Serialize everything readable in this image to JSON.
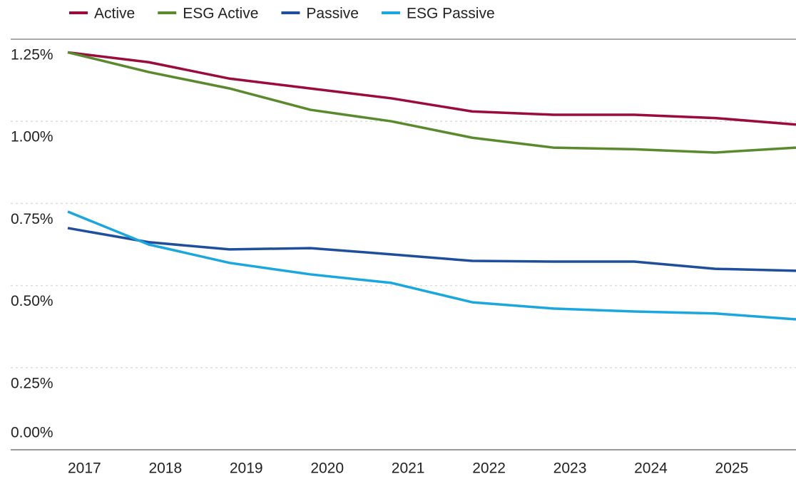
{
  "chart_data": {
    "type": "line",
    "categories": [
      "2017",
      "2018",
      "2019",
      "2020",
      "2021",
      "2022",
      "2023",
      "2024",
      "2025",
      null
    ],
    "series": [
      {
        "name": "Active",
        "color": "#9b0b3c",
        "values": [
          1.21,
          1.18,
          1.13,
          1.1,
          1.07,
          1.03,
          1.02,
          1.02,
          1.01,
          0.99
        ]
      },
      {
        "name": "ESG Active",
        "color": "#5b8a2e",
        "values": [
          1.21,
          1.15,
          1.1,
          1.035,
          1.0,
          0.95,
          0.92,
          0.915,
          0.905,
          0.92
        ]
      },
      {
        "name": "Passive",
        "color": "#1f4e9c",
        "values": [
          0.675,
          0.632,
          0.61,
          0.614,
          0.595,
          0.575,
          0.573,
          0.573,
          0.551,
          0.545
        ]
      },
      {
        "name": "ESG Passive",
        "color": "#1aa6de",
        "values": [
          0.725,
          0.625,
          0.569,
          0.534,
          0.508,
          0.449,
          0.43,
          0.421,
          0.415,
          0.397
        ]
      }
    ],
    "ylim": [
      0,
      1.25
    ],
    "yticks": [
      {
        "value": 0,
        "label": "0.00%"
      },
      {
        "value": 0.25,
        "label": "0.25%"
      },
      {
        "value": 0.5,
        "label": "0.50%"
      },
      {
        "value": 0.75,
        "label": "0.75%"
      },
      {
        "value": 1.0,
        "label": "1.00%"
      },
      {
        "value": 1.25,
        "label": "1.25%"
      }
    ],
    "grid": true,
    "legend": "top"
  }
}
